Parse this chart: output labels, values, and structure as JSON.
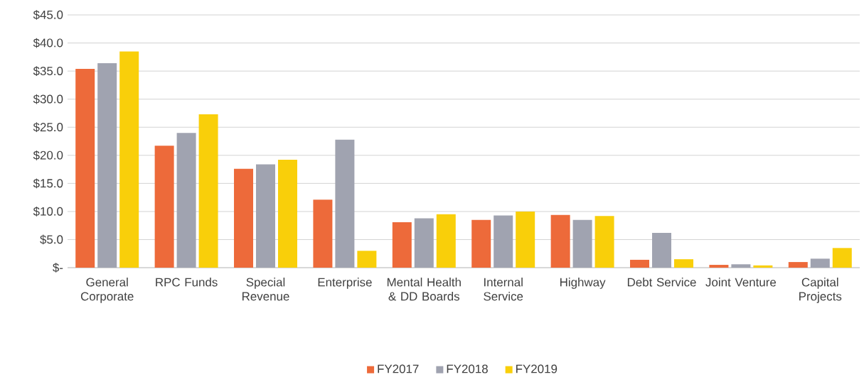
{
  "chart_data": {
    "type": "bar",
    "categories": [
      "General Corporate",
      "RPC Funds",
      "Special Revenue",
      "Enterprise",
      "Mental Health & DD Boards",
      "Internal Service",
      "Highway",
      "Debt Service",
      "Joint Venture",
      "Capital Projects"
    ],
    "series": [
      {
        "name": "FY2017",
        "color": "#ed6a3a",
        "values": [
          35.4,
          21.7,
          17.6,
          12.1,
          8.1,
          8.5,
          9.4,
          1.4,
          0.5,
          1.0
        ]
      },
      {
        "name": "FY2018",
        "color": "#a0a3b0",
        "values": [
          36.4,
          24.0,
          18.4,
          22.8,
          8.8,
          9.3,
          8.5,
          6.2,
          0.6,
          1.6
        ]
      },
      {
        "name": "FY2019",
        "color": "#f9cf0a",
        "values": [
          38.5,
          27.3,
          19.2,
          3.0,
          9.5,
          10.0,
          9.2,
          1.5,
          0.4,
          3.5
        ]
      }
    ],
    "ylim": [
      0,
      45
    ],
    "yticks": [
      {
        "value": 0,
        "label": "$-"
      },
      {
        "value": 5,
        "label": "$5.0"
      },
      {
        "value": 10,
        "label": "$10.0"
      },
      {
        "value": 15,
        "label": "$15.0"
      },
      {
        "value": 20,
        "label": "$20.0"
      },
      {
        "value": 25,
        "label": "$25.0"
      },
      {
        "value": 30,
        "label": "$30.0"
      },
      {
        "value": 35,
        "label": "$35.0"
      },
      {
        "value": 40,
        "label": "$40.0"
      },
      {
        "value": 45,
        "label": "$45.0"
      }
    ],
    "grid": "y",
    "legend": "bottom"
  }
}
